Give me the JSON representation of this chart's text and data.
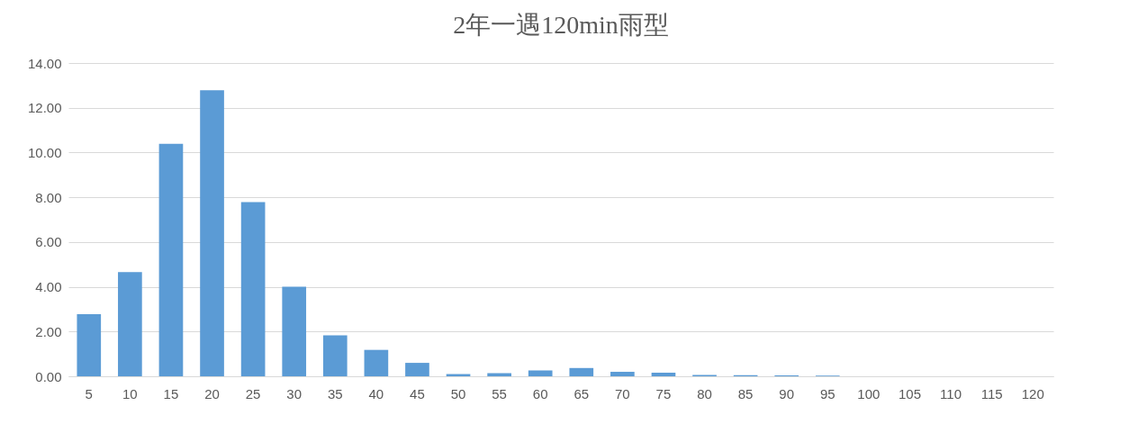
{
  "chart_data": {
    "type": "bar",
    "title": "2年一遇120min雨型",
    "categories": [
      "5",
      "10",
      "15",
      "20",
      "25",
      "30",
      "35",
      "40",
      "45",
      "50",
      "55",
      "60",
      "65",
      "70",
      "75",
      "80",
      "85",
      "90",
      "95",
      "100",
      "105",
      "110",
      "115",
      "120"
    ],
    "values": [
      2.78,
      4.66,
      10.39,
      12.78,
      7.78,
      4.0,
      1.83,
      1.18,
      0.6,
      0.1,
      0.14,
      0.26,
      0.37,
      0.2,
      0.16,
      0.06,
      0.05,
      0.04,
      0.03,
      null,
      null,
      null,
      null,
      null
    ],
    "color": "#5b9bd5",
    "ylim": [
      0,
      14
    ],
    "yticks": [
      {
        "value": 0,
        "label": "0.00"
      },
      {
        "value": 2,
        "label": "2.00"
      },
      {
        "value": 4,
        "label": "4.00"
      },
      {
        "value": 6,
        "label": "6.00"
      },
      {
        "value": 8,
        "label": "8.00"
      },
      {
        "value": 10,
        "label": "10.00"
      },
      {
        "value": 12,
        "label": "12.00"
      },
      {
        "value": 14,
        "label": "14.00"
      }
    ],
    "grid": "y"
  }
}
